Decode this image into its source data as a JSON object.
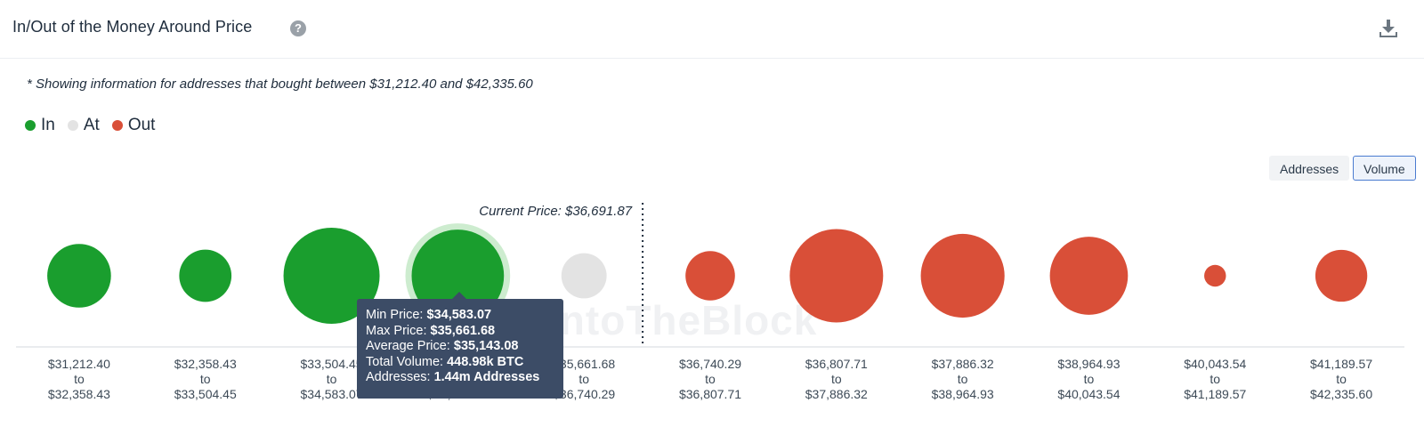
{
  "header": {
    "title": "In/Out of the Money Around Price",
    "help_icon": "?"
  },
  "note": "* Showing information for addresses that bought between $31,212.40 and $42,335.60",
  "legend": [
    {
      "label": "In",
      "color": "#1a9e2e"
    },
    {
      "label": "At",
      "color": "#e3e3e3"
    },
    {
      "label": "Out",
      "color": "#d94f38"
    }
  ],
  "toggles": {
    "addresses": "Addresses",
    "volume": "Volume",
    "selected": "Volume"
  },
  "watermark": "IntoTheBlock",
  "tooltip": {
    "min_label": "Min Price:",
    "min_value": "$34,583.07",
    "max_label": "Max Price:",
    "max_value": "$35,661.68",
    "avg_label": "Average Price:",
    "avg_value": "$35,143.08",
    "vol_label": "Total Volume:",
    "vol_value": "448.98k BTC",
    "addr_label": "Addresses:",
    "addr_value": "1.44m Addresses"
  },
  "chart_data": {
    "type": "bubble",
    "current_price_label": "Current Price: $36,691.87",
    "current_price": 36691.87,
    "colors": {
      "In": "#1a9e2e",
      "At": "#e3e3e3",
      "Out": "#d94f38"
    },
    "ranges": [
      {
        "from": "$31,212.40",
        "to": "$32,358.43",
        "status": "In",
        "volume": 214
      },
      {
        "from": "$32,358.43",
        "to": "$33,504.45",
        "status": "In",
        "volume": 144
      },
      {
        "from": "$33,504.45",
        "to": "$34,583.07",
        "status": "In",
        "volume": 487
      },
      {
        "from": "$34,583.07",
        "to": "$35,661.68",
        "status": "In",
        "volume": 448.98,
        "highlighted": true
      },
      {
        "from": "$35,661.68",
        "to": "$36,740.29",
        "status": "At",
        "volume": 108
      },
      {
        "from": "$36,740.29",
        "to": "$36,807.71",
        "status": "Out",
        "volume": 129
      },
      {
        "from": "$36,807.71",
        "to": "$37,886.32",
        "status": "Out",
        "volume": 460
      },
      {
        "from": "$37,886.32",
        "to": "$38,964.93",
        "status": "Out",
        "volume": 370
      },
      {
        "from": "$38,964.93",
        "to": "$40,043.54",
        "status": "Out",
        "volume": 321
      },
      {
        "from": "$40,043.54",
        "to": "$41,189.57",
        "status": "Out",
        "volume": 25
      },
      {
        "from": "$41,189.57",
        "to": "$42,335.60",
        "status": "Out",
        "volume": 142
      }
    ],
    "to_word": "to"
  }
}
